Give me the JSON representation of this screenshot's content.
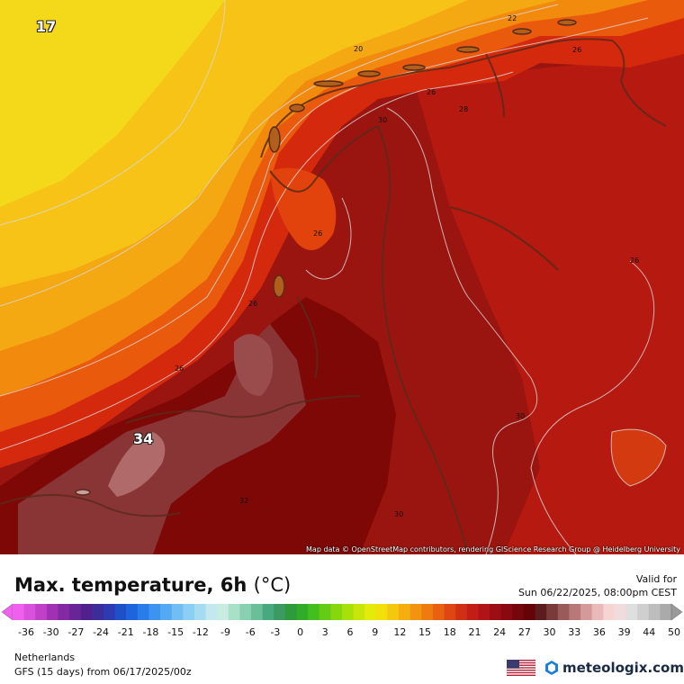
{
  "map": {
    "attribution": "Map data © OpenStreetMap contributors, rendering GIScience Research Group @ Heidelberg University",
    "big_labels": [
      "17",
      "34"
    ],
    "contour_labels": [
      "20",
      "22",
      "26",
      "26",
      "28",
      "30",
      "26",
      "26",
      "26",
      "26",
      "30",
      "32",
      "30"
    ]
  },
  "header": {
    "title": "Max. temperature, 6h",
    "unit": "(°C)",
    "valid_label": "Valid for",
    "valid_time": "Sun 06/22/2025, 08:00pm CEST"
  },
  "scale": {
    "ticks": [
      "-36",
      "-30",
      "-27",
      "-24",
      "-21",
      "-18",
      "-15",
      "-12",
      "-9",
      "-6",
      "-3",
      "0",
      "3",
      "6",
      "9",
      "12",
      "15",
      "18",
      "21",
      "24",
      "27",
      "30",
      "33",
      "36",
      "39",
      "44",
      "50"
    ]
  },
  "footer": {
    "region": "Netherlands",
    "model_run": "GFS (15 days) from  06/17/2025/00z",
    "brand": "meteologix.com"
  }
}
